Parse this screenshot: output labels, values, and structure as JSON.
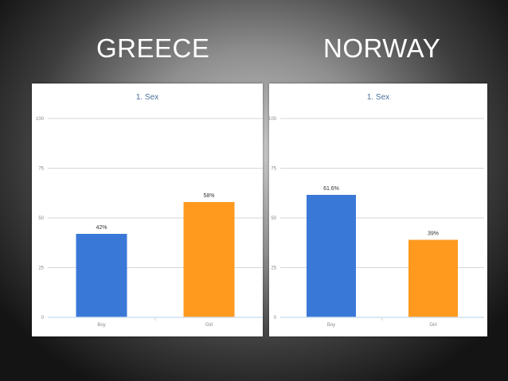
{
  "slide": {
    "left_heading": "GREECE",
    "right_heading": "NORWAY"
  },
  "colors": {
    "series_1": "#3a78d8",
    "series_2": "#ff9a1f",
    "grid": "#d6d6d6"
  },
  "chart_data": [
    {
      "type": "bar",
      "title": "1. Sex",
      "categories": [
        "Boy",
        "Girl"
      ],
      "values": [
        42,
        58
      ],
      "data_labels": [
        "42%",
        "58%"
      ],
      "colors": [
        "#3a78d8",
        "#ff9a1f"
      ],
      "ylim": [
        0,
        100
      ],
      "yticks": [
        "0",
        "25",
        "50",
        "75",
        "100"
      ],
      "grid": true,
      "legend": "none"
    },
    {
      "type": "bar",
      "title": "1. Sex",
      "categories": [
        "Boy",
        "Girl"
      ],
      "values": [
        61.6,
        39
      ],
      "data_labels": [
        "61.6%",
        "39%"
      ],
      "colors": [
        "#3a78d8",
        "#ff9a1f"
      ],
      "ylim": [
        0,
        100
      ],
      "yticks": [
        "0",
        "25",
        "50",
        "75",
        "100"
      ],
      "grid": true,
      "legend": "none"
    }
  ]
}
